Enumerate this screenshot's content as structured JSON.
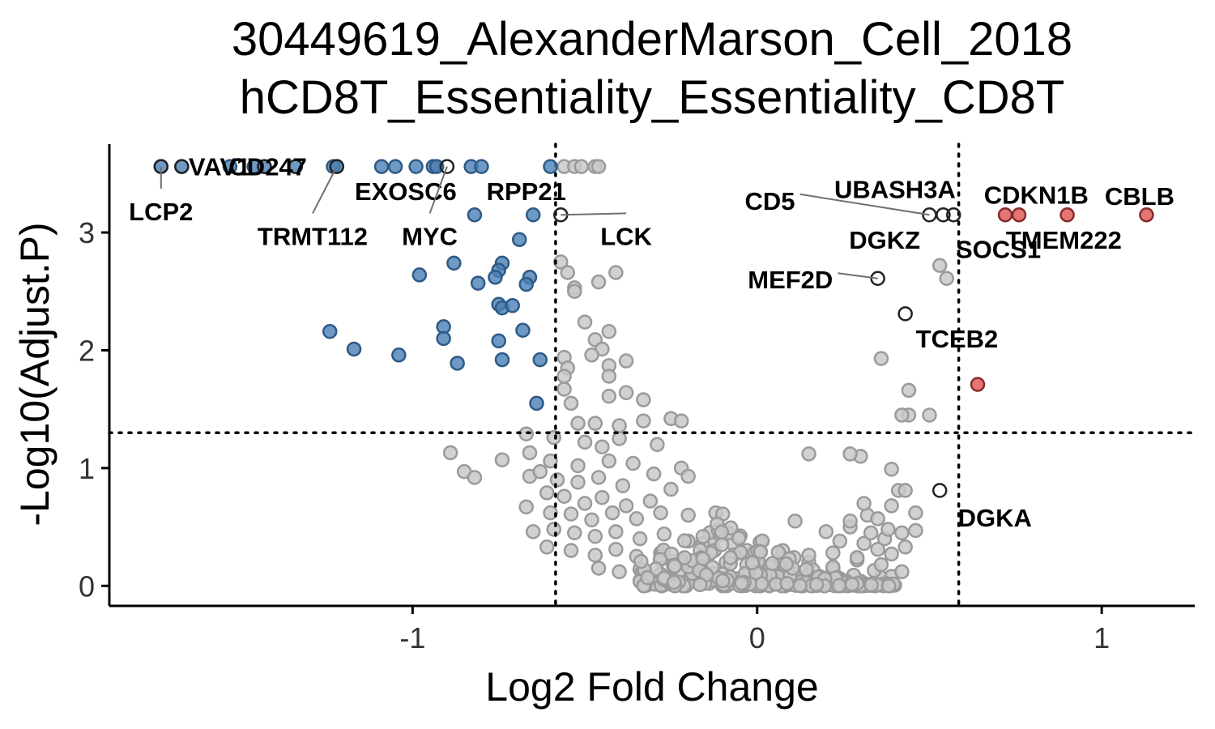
{
  "chart_data": {
    "type": "scatter",
    "title": [
      "30449619_AlexanderMarson_Cell_2018",
      "hCD8T_Essentiality_Essentiality_CD8T"
    ],
    "xlabel": "Log2 Fold Change",
    "ylabel": "-Log10(Adjust.P)",
    "xlim": [
      -1.88,
      1.27
    ],
    "ylim": [
      -0.17,
      3.75
    ],
    "xticks": [
      -1,
      0,
      1
    ],
    "yticks": [
      0,
      1,
      2,
      3
    ],
    "xtick_labels": [
      "-1",
      "0",
      "1"
    ],
    "ytick_labels": [
      "0",
      "1",
      "2",
      "3"
    ],
    "thresholds": {
      "x": [
        -0.585,
        0.585
      ],
      "y": 1.3
    },
    "colors": {
      "down": "#4a7fb5",
      "up": "#e06666",
      "ns": "#c9c9c9",
      "ns_edge": "#9a9a9a",
      "labeled_ns": "#555555"
    },
    "points_down": [
      [
        -1.73,
        3.56
      ],
      [
        -1.67,
        3.56
      ],
      [
        -1.53,
        3.56
      ],
      [
        -1.46,
        3.56
      ],
      [
        -1.43,
        3.56
      ],
      [
        -1.34,
        3.56
      ],
      [
        -1.23,
        3.56
      ],
      [
        -1.22,
        3.56
      ],
      [
        -1.09,
        3.56
      ],
      [
        -1.05,
        3.56
      ],
      [
        -0.99,
        3.56
      ],
      [
        -0.94,
        3.56
      ],
      [
        -0.93,
        3.56
      ],
      [
        -0.83,
        3.56
      ],
      [
        -0.8,
        3.56
      ],
      [
        -0.6,
        3.56
      ],
      [
        -0.82,
        3.15
      ],
      [
        -0.65,
        3.15
      ],
      [
        -0.69,
        2.94
      ],
      [
        -0.88,
        2.74
      ],
      [
        -0.74,
        2.74
      ],
      [
        -0.98,
        2.64
      ],
      [
        -0.75,
        2.68
      ],
      [
        -0.76,
        2.62
      ],
      [
        -0.66,
        2.62
      ],
      [
        -0.81,
        2.57
      ],
      [
        -0.67,
        2.56
      ],
      [
        -0.75,
        2.39
      ],
      [
        -0.74,
        2.36
      ],
      [
        -0.71,
        2.38
      ],
      [
        -1.24,
        2.16
      ],
      [
        -0.91,
        2.2
      ],
      [
        -0.68,
        2.17
      ],
      [
        -0.91,
        2.1
      ],
      [
        -0.75,
        2.08
      ],
      [
        -1.17,
        2.01
      ],
      [
        -1.04,
        1.96
      ],
      [
        -0.74,
        1.92
      ],
      [
        -0.63,
        1.92
      ],
      [
        -0.87,
        1.89
      ],
      [
        -0.64,
        1.55
      ]
    ],
    "points_up": [
      [
        0.72,
        3.15
      ],
      [
        0.76,
        3.15
      ],
      [
        0.9,
        3.15
      ],
      [
        1.13,
        3.15
      ],
      [
        0.64,
        1.71
      ]
    ],
    "points_labeled_ns": [
      [
        -1.73,
        3.56
      ],
      [
        -1.67,
        3.56
      ],
      [
        -1.43,
        3.56
      ],
      [
        -1.34,
        3.56
      ],
      [
        -1.22,
        3.56
      ],
      [
        -0.9,
        3.56
      ],
      [
        -0.57,
        3.15
      ],
      [
        0.5,
        3.15
      ],
      [
        0.54,
        3.15
      ],
      [
        0.57,
        3.15
      ],
      [
        0.35,
        2.61
      ],
      [
        0.43,
        2.31
      ],
      [
        0.53,
        0.81
      ]
    ],
    "points_ns_sample": [
      [
        -0.56,
        3.56
      ],
      [
        -0.53,
        3.56
      ],
      [
        -0.51,
        3.56
      ],
      [
        -0.47,
        3.56
      ],
      [
        -0.46,
        3.56
      ],
      [
        -0.57,
        2.75
      ],
      [
        -0.55,
        2.66
      ],
      [
        -0.53,
        2.53
      ],
      [
        -0.46,
        2.58
      ],
      [
        -0.41,
        2.66
      ],
      [
        -0.53,
        2.5
      ],
      [
        -0.5,
        2.24
      ],
      [
        -0.43,
        2.16
      ],
      [
        -0.47,
        2.09
      ],
      [
        -0.45,
        2.01
      ],
      [
        -0.48,
        1.96
      ],
      [
        -0.56,
        1.94
      ],
      [
        -0.55,
        1.85
      ],
      [
        -0.56,
        1.78
      ],
      [
        -0.43,
        1.87
      ],
      [
        -0.38,
        1.91
      ],
      [
        -0.43,
        1.78
      ],
      [
        -0.56,
        1.67
      ],
      [
        -0.54,
        1.55
      ],
      [
        -0.43,
        1.61
      ],
      [
        -0.38,
        1.64
      ],
      [
        -0.33,
        1.58
      ],
      [
        -0.52,
        1.38
      ],
      [
        -0.47,
        1.38
      ],
      [
        -0.4,
        1.36
      ],
      [
        -0.33,
        1.4
      ],
      [
        -0.25,
        1.42
      ],
      [
        -0.22,
        1.4
      ],
      [
        -0.67,
        1.29
      ],
      [
        -0.59,
        1.26
      ],
      [
        -0.5,
        1.22
      ],
      [
        -0.45,
        1.18
      ],
      [
        -0.4,
        1.25
      ],
      [
        -0.29,
        1.2
      ],
      [
        -0.66,
        1.13
      ],
      [
        -0.6,
        1.06
      ],
      [
        -0.52,
        1.02
      ],
      [
        -0.43,
        1.06
      ],
      [
        -0.36,
        1.04
      ],
      [
        -0.22,
        1.0
      ],
      [
        -0.89,
        1.13
      ],
      [
        -0.85,
        0.97
      ],
      [
        -0.82,
        0.92
      ],
      [
        -0.74,
        1.07
      ],
      [
        -0.66,
        0.93
      ],
      [
        -0.63,
        0.97
      ],
      [
        -0.58,
        0.9
      ],
      [
        -0.52,
        0.88
      ],
      [
        -0.46,
        0.92
      ],
      [
        -0.39,
        0.85
      ],
      [
        -0.3,
        0.95
      ],
      [
        -0.25,
        0.82
      ],
      [
        -0.2,
        0.93
      ],
      [
        -0.61,
        0.79
      ],
      [
        -0.56,
        0.76
      ],
      [
        -0.5,
        0.7
      ],
      [
        -0.45,
        0.75
      ],
      [
        -0.38,
        0.68
      ],
      [
        -0.31,
        0.72
      ],
      [
        -0.67,
        0.67
      ],
      [
        -0.6,
        0.62
      ],
      [
        -0.54,
        0.61
      ],
      [
        -0.48,
        0.56
      ],
      [
        -0.42,
        0.62
      ],
      [
        -0.35,
        0.57
      ],
      [
        -0.28,
        0.62
      ],
      [
        -0.2,
        0.6
      ],
      [
        -0.12,
        0.62
      ],
      [
        -0.1,
        0.61
      ],
      [
        -0.65,
        0.46
      ],
      [
        -0.59,
        0.48
      ],
      [
        -0.53,
        0.45
      ],
      [
        -0.47,
        0.42
      ],
      [
        -0.41,
        0.46
      ],
      [
        -0.34,
        0.4
      ],
      [
        -0.27,
        0.44
      ],
      [
        -0.2,
        0.38
      ],
      [
        -0.13,
        0.36
      ],
      [
        -0.07,
        0.36
      ],
      [
        -0.03,
        0.3
      ],
      [
        -0.61,
        0.33
      ],
      [
        -0.54,
        0.3
      ],
      [
        -0.47,
        0.26
      ],
      [
        -0.41,
        0.31
      ],
      [
        -0.35,
        0.25
      ],
      [
        -0.28,
        0.28
      ],
      [
        -0.22,
        0.22
      ],
      [
        -0.15,
        0.24
      ],
      [
        -0.09,
        0.2
      ],
      [
        -0.03,
        0.18
      ],
      [
        0.01,
        0.16
      ],
      [
        -0.46,
        0.15
      ],
      [
        -0.4,
        0.12
      ],
      [
        -0.34,
        0.14
      ],
      [
        -0.28,
        0.1
      ],
      [
        -0.22,
        0.12
      ],
      [
        -0.16,
        0.08
      ],
      [
        -0.1,
        0.1
      ],
      [
        -0.06,
        0.06
      ],
      [
        -0.02,
        0.04
      ],
      [
        0.03,
        0.08
      ],
      [
        -0.32,
        0.04
      ],
      [
        -0.26,
        0.02
      ],
      [
        -0.2,
        0.05
      ],
      [
        -0.14,
        0.03
      ],
      [
        -0.08,
        0.02
      ],
      [
        0.0,
        0.01
      ],
      [
        0.06,
        0.02
      ],
      [
        0.12,
        0.05
      ],
      [
        0.18,
        0.03
      ],
      [
        0.24,
        0.06
      ],
      [
        0.3,
        0.04
      ],
      [
        0.36,
        0.07
      ],
      [
        0.08,
        0.12
      ],
      [
        0.15,
        0.1
      ],
      [
        0.22,
        0.14
      ],
      [
        0.28,
        0.09
      ],
      [
        0.34,
        0.13
      ],
      [
        0.39,
        0.08
      ],
      [
        0.15,
        0.2
      ],
      [
        0.22,
        0.16
      ],
      [
        0.29,
        0.22
      ],
      [
        0.36,
        0.18
      ],
      [
        0.42,
        0.12
      ],
      [
        0.15,
        0.26
      ],
      [
        0.22,
        0.28
      ],
      [
        0.29,
        0.24
      ],
      [
        0.35,
        0.31
      ],
      [
        0.39,
        0.27
      ],
      [
        0.43,
        0.33
      ],
      [
        0.24,
        0.38
      ],
      [
        0.31,
        0.36
      ],
      [
        0.37,
        0.4
      ],
      [
        0.42,
        0.45
      ],
      [
        0.46,
        0.47
      ],
      [
        0.2,
        0.46
      ],
      [
        0.27,
        0.5
      ],
      [
        0.33,
        0.45
      ],
      [
        0.38,
        0.48
      ],
      [
        0.11,
        0.55
      ],
      [
        0.27,
        0.55
      ],
      [
        0.32,
        0.6
      ],
      [
        0.35,
        0.57
      ],
      [
        0.39,
        0.68
      ],
      [
        0.46,
        0.62
      ],
      [
        0.31,
        0.7
      ],
      [
        0.41,
        0.81
      ],
      [
        0.43,
        0.81
      ],
      [
        0.39,
        0.99
      ],
      [
        0.3,
        1.1
      ],
      [
        0.27,
        1.12
      ],
      [
        0.15,
        1.12
      ],
      [
        0.44,
        1.45
      ],
      [
        0.42,
        1.45
      ],
      [
        0.5,
        1.45
      ],
      [
        0.44,
        1.66
      ],
      [
        0.36,
        1.93
      ],
      [
        0.55,
        2.61
      ],
      [
        0.53,
        2.72
      ]
    ],
    "labels": [
      {
        "text": "LCP2",
        "x": -1.73,
        "y": 3.56,
        "lx": -1.73,
        "ly": 3.18,
        "anchor": "middle",
        "leader": true
      },
      {
        "text": "VAV1",
        "x": -1.67,
        "y": 3.56,
        "lx": -1.56,
        "ly": 3.56,
        "anchor": "middle",
        "leader": false
      },
      {
        "text": "CD247",
        "x": -1.43,
        "y": 3.56,
        "lx": -1.42,
        "ly": 3.56,
        "anchor": "middle",
        "leader": false
      },
      {
        "text": "EXOSC6",
        "x": -1.15,
        "y": 3.56,
        "lx": -1.02,
        "ly": 3.35,
        "anchor": "middle",
        "leader": false
      },
      {
        "text": "TRMT112",
        "x": -1.22,
        "y": 3.56,
        "lx": -1.29,
        "ly": 2.97,
        "anchor": "middle",
        "leader": true
      },
      {
        "text": "MYC",
        "x": -0.9,
        "y": 3.56,
        "lx": -0.95,
        "ly": 2.97,
        "anchor": "middle",
        "leader": true
      },
      {
        "text": "RPP21",
        "x": -0.67,
        "y": 3.56,
        "lx": -0.67,
        "ly": 3.35,
        "anchor": "middle",
        "leader": false
      },
      {
        "text": "LCK",
        "x": -0.57,
        "y": 3.15,
        "lx": -0.38,
        "ly": 2.97,
        "anchor": "middle",
        "leader": true
      },
      {
        "text": "CD5",
        "x": 0.5,
        "y": 3.15,
        "lx": 0.11,
        "ly": 3.27,
        "anchor": "end",
        "leader": true
      },
      {
        "text": "UBASH3A",
        "x": 0.54,
        "y": 3.15,
        "lx": 0.4,
        "ly": 3.37,
        "anchor": "middle",
        "leader": false
      },
      {
        "text": "DGKZ",
        "x": 0.57,
        "y": 3.15,
        "lx": 0.37,
        "ly": 2.94,
        "anchor": "middle",
        "leader": false
      },
      {
        "text": "CDKN1B",
        "x": 0.76,
        "y": 3.15,
        "lx": 0.81,
        "ly": 3.32,
        "anchor": "middle",
        "leader": false
      },
      {
        "text": "CBLB",
        "x": 1.13,
        "y": 3.15,
        "lx": 1.11,
        "ly": 3.31,
        "anchor": "middle",
        "leader": false
      },
      {
        "text": "SOCS1",
        "x": 0.72,
        "y": 3.15,
        "lx": 0.7,
        "ly": 2.86,
        "anchor": "middle",
        "leader": false
      },
      {
        "text": "TMEM222",
        "x": 0.9,
        "y": 3.15,
        "lx": 0.89,
        "ly": 2.94,
        "anchor": "middle",
        "leader": false
      },
      {
        "text": "MEF2D",
        "x": 0.35,
        "y": 2.61,
        "lx": 0.22,
        "ly": 2.6,
        "anchor": "end",
        "leader": true
      },
      {
        "text": "TCEB2",
        "x": 0.43,
        "y": 2.31,
        "lx": 0.58,
        "ly": 2.1,
        "anchor": "middle",
        "leader": false
      },
      {
        "text": "DGKA",
        "x": 0.53,
        "y": 0.81,
        "lx": 0.69,
        "ly": 0.58,
        "anchor": "middle",
        "leader": false
      }
    ]
  }
}
